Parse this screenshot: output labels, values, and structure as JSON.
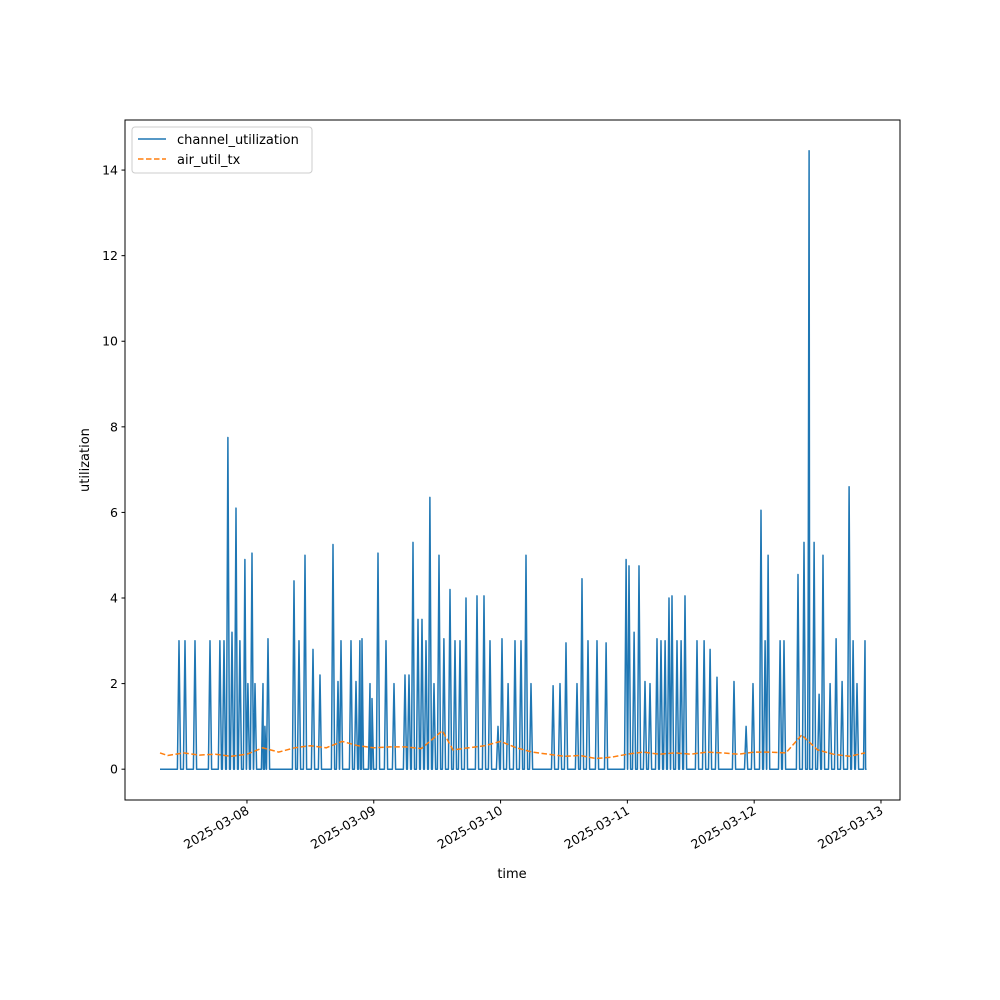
{
  "chart_data": {
    "type": "line",
    "xlabel": "time",
    "ylabel": "utilization",
    "xlim": [
      "2025-03-07 00:55",
      "2025-03-13 03:36"
    ],
    "ylim": [
      -0.72,
      15.17
    ],
    "xticks": [
      "2025-03-08",
      "2025-03-09",
      "2025-03-10",
      "2025-03-11",
      "2025-03-12",
      "2025-03-13"
    ],
    "yticks": [
      0,
      2,
      4,
      6,
      8,
      10,
      12,
      14
    ],
    "grid": false,
    "legend_position": "upper-left",
    "series": [
      {
        "name": "channel_utilization",
        "color": "#1f77b4",
        "style": "solid",
        "start": "2025-03-07 07:32",
        "end": "2025-03-12 21:05",
        "baseline": 0,
        "spikes": [
          [
            "2025-03-07 11:08",
            3.0
          ],
          [
            "2025-03-07 12:16",
            3.0
          ],
          [
            "2025-03-07 14:10",
            3.0
          ],
          [
            "2025-03-07 17:00",
            3.0
          ],
          [
            "2025-03-07 18:53",
            3.0
          ],
          [
            "2025-03-07 19:39",
            3.0
          ],
          [
            "2025-03-07 20:24",
            7.75
          ],
          [
            "2025-03-07 21:10",
            3.2
          ],
          [
            "2025-03-07 21:55",
            6.1
          ],
          [
            "2025-03-07 22:40",
            3.0
          ],
          [
            "2025-03-07 23:37",
            4.9
          ],
          [
            "2025-03-08 00:11",
            2.0
          ],
          [
            "2025-03-08 00:57",
            5.05
          ],
          [
            "2025-03-08 01:31",
            2.0
          ],
          [
            "2025-03-08 03:02",
            2.0
          ],
          [
            "2025-03-08 03:24",
            1.0
          ],
          [
            "2025-03-08 03:59",
            3.05
          ],
          [
            "2025-03-08 08:54",
            4.4
          ],
          [
            "2025-03-08 09:51",
            3.0
          ],
          [
            "2025-03-08 10:59",
            5.0
          ],
          [
            "2025-03-08 12:30",
            2.8
          ],
          [
            "2025-03-08 13:49",
            2.2
          ],
          [
            "2025-03-08 16:17",
            5.25
          ],
          [
            "2025-03-08 17:14",
            2.05
          ],
          [
            "2025-03-08 17:48",
            3.0
          ],
          [
            "2025-03-08 19:41",
            3.0
          ],
          [
            "2025-03-08 20:38",
            2.05
          ],
          [
            "2025-03-08 21:23",
            3.0
          ],
          [
            "2025-03-08 21:46",
            3.05
          ],
          [
            "2025-03-08 23:17",
            2.0
          ],
          [
            "2025-03-08 23:40",
            1.65
          ],
          [
            "2025-03-09 00:48",
            5.05
          ],
          [
            "2025-03-09 02:19",
            3.0
          ],
          [
            "2025-03-09 03:50",
            2.0
          ],
          [
            "2025-03-09 05:55",
            2.2
          ],
          [
            "2025-03-09 06:40",
            2.2
          ],
          [
            "2025-03-09 07:25",
            5.3
          ],
          [
            "2025-03-09 08:22",
            3.5
          ],
          [
            "2025-03-09 09:08",
            3.5
          ],
          [
            "2025-03-09 09:53",
            3.0
          ],
          [
            "2025-03-09 10:38",
            6.35
          ],
          [
            "2025-03-09 11:24",
            2.0
          ],
          [
            "2025-03-09 12:21",
            5.0
          ],
          [
            "2025-03-09 13:17",
            3.05
          ],
          [
            "2025-03-09 14:26",
            4.2
          ],
          [
            "2025-03-09 15:22",
            3.0
          ],
          [
            "2025-03-09 16:19",
            3.0
          ],
          [
            "2025-03-09 17:27",
            4.0
          ],
          [
            "2025-03-09 19:32",
            4.05
          ],
          [
            "2025-03-09 20:52",
            4.05
          ],
          [
            "2025-03-09 22:00",
            3.0
          ],
          [
            "2025-03-09 23:31",
            1.0
          ],
          [
            "2025-03-10 00:16",
            3.05
          ],
          [
            "2025-03-10 01:25",
            2.0
          ],
          [
            "2025-03-10 02:44",
            3.0
          ],
          [
            "2025-03-10 03:52",
            3.0
          ],
          [
            "2025-03-10 04:49",
            5.0
          ],
          [
            "2025-03-10 05:46",
            2.0
          ],
          [
            "2025-03-10 09:56",
            1.95
          ],
          [
            "2025-03-10 11:15",
            2.0
          ],
          [
            "2025-03-10 12:23",
            2.95
          ],
          [
            "2025-03-10 14:28",
            2.0
          ],
          [
            "2025-03-10 15:25",
            4.45
          ],
          [
            "2025-03-10 16:33",
            3.0
          ],
          [
            "2025-03-10 18:15",
            3.0
          ],
          [
            "2025-03-10 19:58",
            2.95
          ],
          [
            "2025-03-10 23:45",
            4.9
          ],
          [
            "2025-03-11 00:19",
            4.75
          ],
          [
            "2025-03-11 01:16",
            3.2
          ],
          [
            "2025-03-11 02:12",
            4.75
          ],
          [
            "2025-03-11 03:20",
            2.05
          ],
          [
            "2025-03-11 04:17",
            2.0
          ],
          [
            "2025-03-11 05:37",
            3.05
          ],
          [
            "2025-03-11 06:22",
            3.0
          ],
          [
            "2025-03-11 07:08",
            3.0
          ],
          [
            "2025-03-11 07:53",
            4.0
          ],
          [
            "2025-03-11 08:27",
            4.05
          ],
          [
            "2025-03-11 09:24",
            3.0
          ],
          [
            "2025-03-11 10:10",
            3.0
          ],
          [
            "2025-03-11 10:55",
            4.05
          ],
          [
            "2025-03-11 13:11",
            3.0
          ],
          [
            "2025-03-11 14:31",
            3.0
          ],
          [
            "2025-03-11 15:39",
            2.8
          ],
          [
            "2025-03-11 16:58",
            2.15
          ],
          [
            "2025-03-11 20:11",
            2.05
          ],
          [
            "2025-03-11 22:28",
            1.0
          ],
          [
            "2025-03-11 23:47",
            2.0
          ],
          [
            "2025-03-12 01:18",
            6.05
          ],
          [
            "2025-03-12 02:04",
            3.0
          ],
          [
            "2025-03-12 02:38",
            5.0
          ],
          [
            "2025-03-12 04:54",
            3.0
          ],
          [
            "2025-03-12 05:39",
            3.0
          ],
          [
            "2025-03-12 08:18",
            4.55
          ],
          [
            "2025-03-12 09:26",
            5.3
          ],
          [
            "2025-03-12 10:12",
            3.0
          ],
          [
            "2025-03-12 10:24",
            14.45
          ],
          [
            "2025-03-12 11:20",
            5.3
          ],
          [
            "2025-03-12 12:17",
            1.75
          ],
          [
            "2025-03-12 13:02",
            5.0
          ],
          [
            "2025-03-12 14:22",
            2.0
          ],
          [
            "2025-03-12 15:30",
            3.05
          ],
          [
            "2025-03-12 16:38",
            2.05
          ],
          [
            "2025-03-12 17:58",
            6.6
          ],
          [
            "2025-03-12 18:43",
            3.0
          ],
          [
            "2025-03-12 19:28",
            2.0
          ],
          [
            "2025-03-12 20:59",
            3.0
          ]
        ]
      },
      {
        "name": "air_util_tx",
        "color": "#ff7f0e",
        "style": "dashed",
        "points": [
          [
            "2025-03-07 07:32",
            0.38
          ],
          [
            "2025-03-07 09:00",
            0.32
          ],
          [
            "2025-03-07 12:00",
            0.38
          ],
          [
            "2025-03-07 15:00",
            0.33
          ],
          [
            "2025-03-07 18:00",
            0.35
          ],
          [
            "2025-03-07 21:00",
            0.3
          ],
          [
            "2025-03-08 00:00",
            0.35
          ],
          [
            "2025-03-08 03:00",
            0.5
          ],
          [
            "2025-03-08 06:00",
            0.4
          ],
          [
            "2025-03-08 09:00",
            0.5
          ],
          [
            "2025-03-08 12:00",
            0.55
          ],
          [
            "2025-03-08 15:00",
            0.5
          ],
          [
            "2025-03-08 18:00",
            0.65
          ],
          [
            "2025-03-08 21:00",
            0.55
          ],
          [
            "2025-03-09 00:00",
            0.5
          ],
          [
            "2025-03-09 03:00",
            0.52
          ],
          [
            "2025-03-09 06:00",
            0.52
          ],
          [
            "2025-03-09 09:00",
            0.48
          ],
          [
            "2025-03-09 13:00",
            0.9
          ],
          [
            "2025-03-09 15:00",
            0.45
          ],
          [
            "2025-03-09 18:00",
            0.5
          ],
          [
            "2025-03-09 21:00",
            0.55
          ],
          [
            "2025-03-10 00:00",
            0.65
          ],
          [
            "2025-03-10 03:00",
            0.5
          ],
          [
            "2025-03-10 06:00",
            0.4
          ],
          [
            "2025-03-10 09:00",
            0.35
          ],
          [
            "2025-03-10 12:00",
            0.3
          ],
          [
            "2025-03-10 15:00",
            0.32
          ],
          [
            "2025-03-10 18:00",
            0.25
          ],
          [
            "2025-03-10 21:00",
            0.28
          ],
          [
            "2025-03-11 00:00",
            0.35
          ],
          [
            "2025-03-11 03:00",
            0.4
          ],
          [
            "2025-03-11 06:00",
            0.35
          ],
          [
            "2025-03-11 09:00",
            0.38
          ],
          [
            "2025-03-11 12:00",
            0.35
          ],
          [
            "2025-03-11 15:00",
            0.4
          ],
          [
            "2025-03-11 18:00",
            0.38
          ],
          [
            "2025-03-11 21:00",
            0.35
          ],
          [
            "2025-03-12 00:00",
            0.4
          ],
          [
            "2025-03-12 03:00",
            0.4
          ],
          [
            "2025-03-12 06:00",
            0.38
          ],
          [
            "2025-03-12 09:00",
            0.8
          ],
          [
            "2025-03-12 12:00",
            0.45
          ],
          [
            "2025-03-12 15:00",
            0.35
          ],
          [
            "2025-03-12 18:00",
            0.3
          ],
          [
            "2025-03-12 21:00",
            0.38
          ]
        ]
      }
    ]
  }
}
